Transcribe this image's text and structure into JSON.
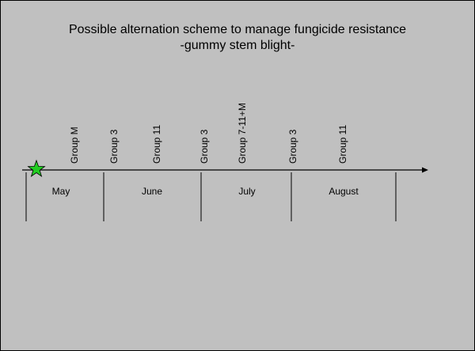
{
  "title": [
    "Possible alternation scheme to manage fungicide resistance",
    "-gummy stem blight-"
  ],
  "applications": [
    "Group M",
    "Group 3",
    "Group 11",
    "Group 3",
    "Group 7-11+M",
    "Group 3",
    "Group 11"
  ],
  "months": [
    "May",
    "June",
    "July",
    "August"
  ]
}
